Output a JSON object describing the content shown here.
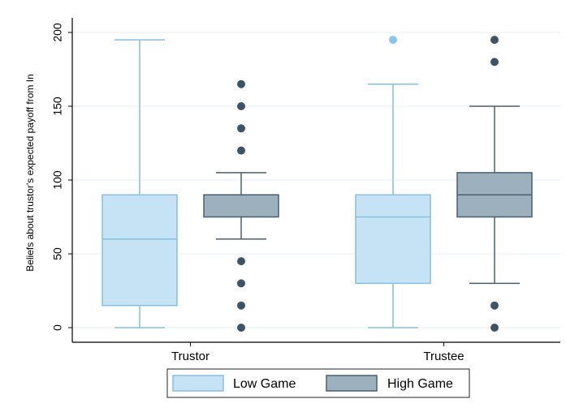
{
  "chart_data": {
    "type": "boxplot",
    "title": "",
    "ylabel": "Beliefs about trustor's expected payoff from In",
    "xlabel": "",
    "ylim": [
      0,
      200
    ],
    "yticks": [
      0,
      50,
      100,
      150,
      200
    ],
    "grid": true,
    "legend_position": "bottom",
    "categories": [
      "Trustor",
      "Trustee"
    ],
    "series": [
      {
        "name": "Low Game",
        "fill": "#c6e2f5",
        "stroke": "#86bfe0",
        "boxes": [
          {
            "category": "Trustor",
            "whisker_low": 0,
            "q1": 15,
            "median": 60,
            "q3": 90,
            "whisker_high": 195,
            "outliers": []
          },
          {
            "category": "Trustee",
            "whisker_low": 0,
            "q1": 30,
            "median": 75,
            "q3": 90,
            "whisker_high": 165,
            "outliers": [
              195
            ]
          }
        ]
      },
      {
        "name": "High Game",
        "fill": "#9db0bd",
        "stroke": "#4a5f70",
        "boxes": [
          {
            "category": "Trustor",
            "whisker_low": 60,
            "q1": 75,
            "median": 90,
            "q3": 90,
            "whisker_high": 105,
            "outliers": [
              0,
              15,
              30,
              45,
              120,
              135,
              150,
              165
            ]
          },
          {
            "category": "Trustee",
            "whisker_low": 30,
            "q1": 75,
            "median": 90,
            "q3": 105,
            "whisker_high": 150,
            "outliers": [
              0,
              15,
              180,
              195
            ]
          }
        ]
      }
    ]
  },
  "colors": {
    "grid": "#e6eef3",
    "axis": "#000000",
    "low_outlier": "#86c5ec",
    "high_outlier": "#3d5366"
  }
}
